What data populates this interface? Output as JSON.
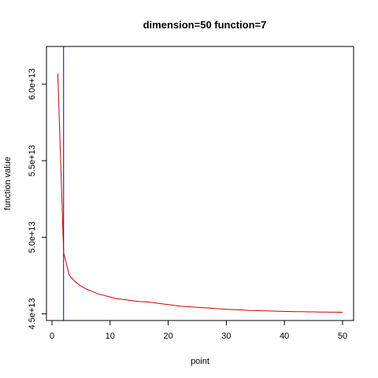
{
  "chart_data": {
    "type": "line",
    "title": "dimension=50 function=7",
    "xlabel": "point",
    "ylabel": "function value",
    "xlim": [
      0,
      50
    ],
    "ylim": [
      45000000000000.0,
      62000000000000.0
    ],
    "x_ticks": [
      0,
      10,
      20,
      30,
      40,
      50
    ],
    "x_tick_labels": [
      "0",
      "10",
      "20",
      "30",
      "40",
      "50"
    ],
    "y_ticks": [
      45000000000000.0,
      50000000000000.0,
      55000000000000.0,
      60000000000000.0
    ],
    "y_tick_labels": [
      "4.5e+13",
      "5.0e+13",
      "5.5e+13",
      "6.0e+13"
    ],
    "grid": false,
    "series": [
      {
        "color": "#cc0000",
        "x": [
          1,
          2,
          3,
          4,
          5,
          6,
          7,
          8,
          9,
          10,
          11,
          12,
          13,
          14,
          15,
          16,
          17,
          18,
          19,
          20,
          21,
          22,
          23,
          24,
          25,
          26,
          27,
          28,
          29,
          30,
          31,
          32,
          33,
          34,
          35,
          36,
          37,
          38,
          39,
          40,
          41,
          42,
          43,
          44,
          45,
          46,
          47,
          48,
          49,
          50
        ],
        "y": [
          60700000000000.0,
          49000000000000.0,
          47500000000000.0,
          47100000000000.0,
          46800000000000.0,
          46600000000000.0,
          46450000000000.0,
          46300000000000.0,
          46200000000000.0,
          46100000000000.0,
          46000000000000.0,
          45950000000000.0,
          45900000000000.0,
          45850000000000.0,
          45800000000000.0,
          45780000000000.0,
          45750000000000.0,
          45700000000000.0,
          45650000000000.0,
          45600000000000.0,
          45550000000000.0,
          45500000000000.0,
          45480000000000.0,
          45450000000000.0,
          45420000000000.0,
          45400000000000.0,
          45380000000000.0,
          45350000000000.0,
          45320000000000.0,
          45300000000000.0,
          45280000000000.0,
          45260000000000.0,
          45240000000000.0,
          45220000000000.0,
          45210000000000.0,
          45200000000000.0,
          45190000000000.0,
          45180000000000.0,
          45170000000000.0,
          45160000000000.0,
          45150000000000.0,
          45140000000000.0,
          45140000000000.0,
          45130000000000.0,
          45130000000000.0,
          45120000000000.0,
          45120000000000.0,
          45110000000000.0,
          45110000000000.0,
          45100000000000.0
        ]
      }
    ],
    "vline": {
      "x": 2,
      "color": "#0000cc"
    }
  }
}
